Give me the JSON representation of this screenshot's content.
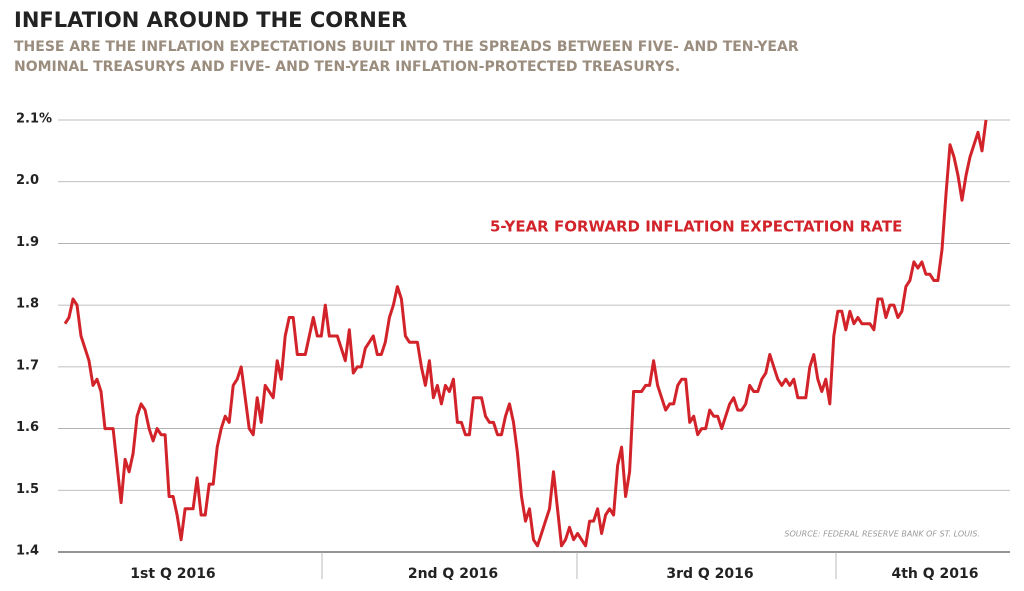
{
  "chart_data": {
    "type": "line",
    "title": "INFLATION AROUND THE CORNER",
    "subtitle": [
      "THESE ARE THE INFLATION EXPECTATIONS BUILT INTO THE SPREADS BETWEEN FIVE- AND TEN-YEAR",
      "NOMINAL TREASURYS AND FIVE- AND TEN-YEAR INFLATION-PROTECTED TREASURYS."
    ],
    "source": "SOURCE: FEDERAL RESERVE BANK OF ST. LOUIS.",
    "x_labels": [
      "1st Q 2016",
      "2nd Q 2016",
      "3rd Q 2016",
      "4th Q 2016"
    ],
    "ylim": [
      1.4,
      2.1
    ],
    "yticks": [
      1.4,
      1.5,
      1.6,
      1.7,
      1.8,
      1.9,
      {
        "value": 2,
        "label": "2.0"
      },
      {
        "value": 2.1,
        "label": "2.1%"
      }
    ],
    "grid": true,
    "series": [
      {
        "name": "5-YEAR FORWARD INFLATION EXPECTATION RATE",
        "color": "#d2232a",
        "values": [
          1.77,
          1.78,
          1.81,
          1.8,
          1.75,
          1.73,
          1.71,
          1.67,
          1.68,
          1.66,
          1.6,
          1.6,
          1.6,
          1.54,
          1.48,
          1.55,
          1.53,
          1.56,
          1.62,
          1.64,
          1.63,
          1.6,
          1.58,
          1.6,
          1.59,
          1.59,
          1.49,
          1.49,
          1.46,
          1.42,
          1.47,
          1.47,
          1.47,
          1.52,
          1.46,
          1.46,
          1.51,
          1.51,
          1.57,
          1.6,
          1.62,
          1.61,
          1.67,
          1.68,
          1.7,
          1.65,
          1.6,
          1.59,
          1.65,
          1.61,
          1.67,
          1.66,
          1.65,
          1.71,
          1.68,
          1.75,
          1.78,
          1.78,
          1.72,
          1.72,
          1.72,
          1.75,
          1.78,
          1.75,
          1.75,
          1.8,
          1.75,
          1.75,
          1.75,
          1.73,
          1.71,
          1.76,
          1.69,
          1.7,
          1.7,
          1.73,
          1.74,
          1.75,
          1.72,
          1.72,
          1.74,
          1.78,
          1.8,
          1.83,
          1.81,
          1.75,
          1.74,
          1.74,
          1.74,
          1.7,
          1.67,
          1.71,
          1.65,
          1.67,
          1.64,
          1.67,
          1.66,
          1.68,
          1.61,
          1.61,
          1.59,
          1.59,
          1.65,
          1.65,
          1.65,
          1.62,
          1.61,
          1.61,
          1.59,
          1.59,
          1.62,
          1.64,
          1.61,
          1.56,
          1.49,
          1.45,
          1.47,
          1.42,
          1.41,
          1.43,
          1.45,
          1.47,
          1.53,
          1.47,
          1.41,
          1.42,
          1.44,
          1.42,
          1.43,
          1.42,
          1.41,
          1.45,
          1.45,
          1.47,
          1.43,
          1.46,
          1.47,
          1.46,
          1.54,
          1.57,
          1.49,
          1.53,
          1.66,
          1.66,
          1.66,
          1.67,
          1.67,
          1.71,
          1.67,
          1.65,
          1.63,
          1.64,
          1.64,
          1.67,
          1.68,
          1.68,
          1.61,
          1.62,
          1.59,
          1.6,
          1.6,
          1.63,
          1.62,
          1.62,
          1.6,
          1.62,
          1.64,
          1.65,
          1.63,
          1.63,
          1.64,
          1.67,
          1.66,
          1.66,
          1.68,
          1.69,
          1.72,
          1.7,
          1.68,
          1.67,
          1.68,
          1.67,
          1.68,
          1.65,
          1.65,
          1.65,
          1.7,
          1.72,
          1.68,
          1.66,
          1.68,
          1.64,
          1.75,
          1.79,
          1.79,
          1.76,
          1.79,
          1.77,
          1.78,
          1.77,
          1.77,
          1.77,
          1.76,
          1.81,
          1.81,
          1.78,
          1.8,
          1.8,
          1.78,
          1.79,
          1.83,
          1.84,
          1.87,
          1.86,
          1.87,
          1.85,
          1.85,
          1.84,
          1.84,
          1.89,
          1.98,
          2.06,
          2.04,
          2.01,
          1.97,
          2.01,
          2.04,
          2.06,
          2.08,
          2.05,
          2.1
        ]
      }
    ]
  }
}
